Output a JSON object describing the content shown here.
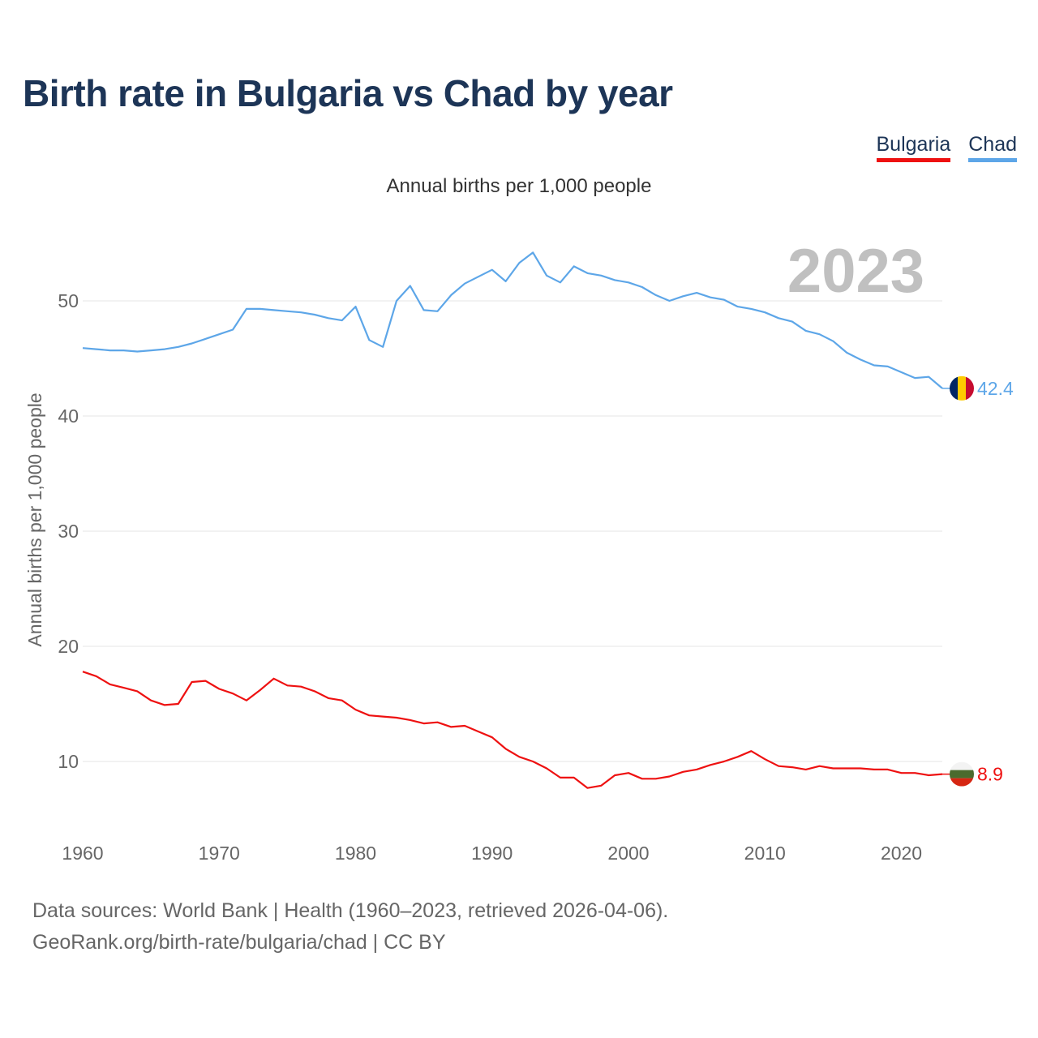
{
  "colors": {
    "bulgaria": "#ee1111",
    "chad": "#5da6e8",
    "title": "#1d3557",
    "year_stamp": "#c0c0c0"
  },
  "chart_data": {
    "type": "line",
    "title": "Birth rate in Bulgaria vs Chad by year",
    "subtitle": "Annual births per 1,000 people",
    "ylabel": "Annual births per 1,000 people",
    "xlabel": "",
    "xlim": [
      1960,
      2023
    ],
    "ylim": [
      5,
      56
    ],
    "yticks": [
      10,
      20,
      30,
      40,
      50
    ],
    "xticks": [
      1960,
      1970,
      1980,
      1990,
      2000,
      2010,
      2020
    ],
    "year_stamp": "2023",
    "x": [
      1960,
      1961,
      1962,
      1963,
      1964,
      1965,
      1966,
      1967,
      1968,
      1969,
      1970,
      1971,
      1972,
      1973,
      1974,
      1975,
      1976,
      1977,
      1978,
      1979,
      1980,
      1981,
      1982,
      1983,
      1984,
      1985,
      1986,
      1987,
      1988,
      1989,
      1990,
      1991,
      1992,
      1993,
      1994,
      1995,
      1996,
      1997,
      1998,
      1999,
      2000,
      2001,
      2002,
      2003,
      2004,
      2005,
      2006,
      2007,
      2008,
      2009,
      2010,
      2011,
      2012,
      2013,
      2014,
      2015,
      2016,
      2017,
      2018,
      2019,
      2020,
      2021,
      2022,
      2023
    ],
    "series": [
      {
        "name": "Bulgaria",
        "color": "#ee1111",
        "end_label": "8.9",
        "flag": "bulgaria-flag-icon",
        "values": [
          17.8,
          17.4,
          16.7,
          16.4,
          16.1,
          15.3,
          14.9,
          15.0,
          16.9,
          17.0,
          16.3,
          15.9,
          15.3,
          16.2,
          17.2,
          16.6,
          16.5,
          16.1,
          15.5,
          15.3,
          14.5,
          14.0,
          13.9,
          13.8,
          13.6,
          13.3,
          13.4,
          13.0,
          13.1,
          12.6,
          12.1,
          11.1,
          10.4,
          10.0,
          9.4,
          8.6,
          8.6,
          7.7,
          7.9,
          8.8,
          9.0,
          8.5,
          8.5,
          8.7,
          9.1,
          9.3,
          9.7,
          10.0,
          10.4,
          10.9,
          10.2,
          9.6,
          9.5,
          9.3,
          9.6,
          9.4,
          9.4,
          9.4,
          9.3,
          9.3,
          9.0,
          9.0,
          8.8,
          8.9
        ]
      },
      {
        "name": "Chad",
        "color": "#5da6e8",
        "end_label": "42.4",
        "flag": "chad-flag-icon",
        "values": [
          45.9,
          45.8,
          45.7,
          45.7,
          45.6,
          45.7,
          45.8,
          46.0,
          46.3,
          46.7,
          47.1,
          47.5,
          49.3,
          49.3,
          49.2,
          49.1,
          49.0,
          48.8,
          48.5,
          48.3,
          49.5,
          46.6,
          46.0,
          50.0,
          51.3,
          49.2,
          49.1,
          50.5,
          51.5,
          52.1,
          52.7,
          51.7,
          53.3,
          54.2,
          52.2,
          51.6,
          53.0,
          52.4,
          52.2,
          51.8,
          51.6,
          51.2,
          50.5,
          50.0,
          50.4,
          50.7,
          50.3,
          50.1,
          49.5,
          49.3,
          49.0,
          48.5,
          48.2,
          47.4,
          47.1,
          46.5,
          45.5,
          44.9,
          44.4,
          44.3,
          43.8,
          43.3,
          43.4,
          42.4
        ]
      }
    ]
  },
  "legend": [
    {
      "label": "Bulgaria"
    },
    {
      "label": "Chad"
    }
  ],
  "footer": {
    "sources": "Data sources: World Bank | Health (1960–2023, retrieved 2026-04-06).",
    "credit": "GeoRank.org/birth-rate/bulgaria/chad | CC BY"
  }
}
